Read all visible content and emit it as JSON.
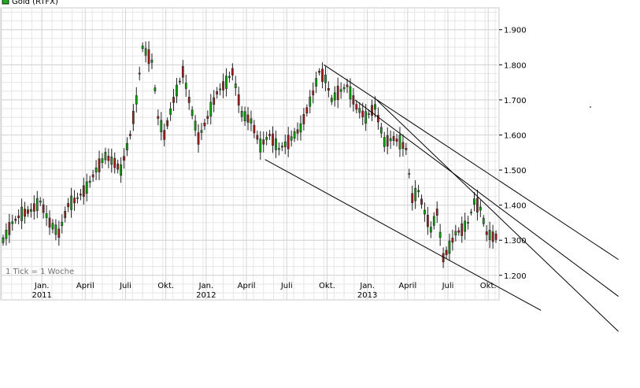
{
  "chart_data": {
    "type": "candlestick",
    "legend": {
      "label": "Gold (RTFX)",
      "color": "#22aa22"
    },
    "note": "1 Tick = 1 Woche",
    "y_range": [
      1130,
      1960
    ],
    "y_ticks": [
      "1.900",
      "1.800",
      "1.700",
      "1.600",
      "1.500",
      "1.400",
      "1.300",
      "1.200"
    ],
    "y_tick_values": [
      1900,
      1800,
      1700,
      1600,
      1500,
      1400,
      1300,
      1200
    ],
    "x_range": [
      0,
      160
    ],
    "x_ticks": [
      {
        "label": "Jan.",
        "year": "2011",
        "week": 13
      },
      {
        "label": "April",
        "year": "",
        "week": 27
      },
      {
        "label": "Juli",
        "year": "",
        "week": 40
      },
      {
        "label": "Okt.",
        "year": "",
        "week": 53
      },
      {
        "label": "Jan.",
        "year": "2012",
        "week": 66
      },
      {
        "label": "April",
        "year": "",
        "week": 79
      },
      {
        "label": "Juli",
        "year": "",
        "week": 92
      },
      {
        "label": "Okt.",
        "year": "",
        "week": 105
      },
      {
        "label": "Jan.",
        "year": "2013",
        "week": 118
      },
      {
        "label": "April",
        "year": "",
        "week": 131
      },
      {
        "label": "Juli",
        "year": "",
        "week": 144
      },
      {
        "label": "Okt.",
        "year": "",
        "week": 157
      }
    ],
    "colors": {
      "up": "#00aa00",
      "down": "#aa1a1a",
      "grid": "#d4d4d4",
      "trend": "#000000"
    },
    "anchors": [
      [
        0,
        1300
      ],
      [
        3,
        1350
      ],
      [
        6,
        1375
      ],
      [
        9,
        1385
      ],
      [
        12,
        1410
      ],
      [
        15,
        1350
      ],
      [
        18,
        1320
      ],
      [
        21,
        1400
      ],
      [
        24,
        1420
      ],
      [
        27,
        1450
      ],
      [
        30,
        1500
      ],
      [
        33,
        1540
      ],
      [
        36,
        1520
      ],
      [
        38,
        1500
      ],
      [
        41,
        1600
      ],
      [
        43,
        1700
      ],
      [
        45,
        1850
      ],
      [
        48,
        1810
      ],
      [
        50,
        1650
      ],
      [
        52,
        1600
      ],
      [
        55,
        1700
      ],
      [
        58,
        1780
      ],
      [
        60,
        1700
      ],
      [
        63,
        1590
      ],
      [
        66,
        1650
      ],
      [
        69,
        1720
      ],
      [
        72,
        1750
      ],
      [
        74,
        1780
      ],
      [
        77,
        1660
      ],
      [
        80,
        1640
      ],
      [
        83,
        1570
      ],
      [
        86,
        1600
      ],
      [
        89,
        1560
      ],
      [
        92,
        1580
      ],
      [
        96,
        1620
      ],
      [
        100,
        1720
      ],
      [
        102,
        1780
      ],
      [
        104,
        1760
      ],
      [
        106,
        1700
      ],
      [
        108,
        1720
      ],
      [
        111,
        1740
      ],
      [
        114,
        1680
      ],
      [
        117,
        1650
      ],
      [
        120,
        1680
      ],
      [
        123,
        1580
      ],
      [
        126,
        1590
      ],
      [
        128,
        1580
      ],
      [
        130,
        1560
      ],
      [
        132,
        1420
      ],
      [
        134,
        1440
      ],
      [
        136,
        1380
      ],
      [
        138,
        1330
      ],
      [
        140,
        1380
      ],
      [
        142,
        1250
      ],
      [
        144,
        1280
      ],
      [
        146,
        1320
      ],
      [
        148,
        1330
      ],
      [
        150,
        1350
      ],
      [
        152,
        1410
      ],
      [
        154,
        1390
      ],
      [
        156,
        1320
      ],
      [
        158,
        1310
      ],
      [
        159,
        1310
      ]
    ],
    "trendlines": [
      {
        "from": [
          104,
          1800
        ],
        "to": [
          199,
          1245
        ]
      },
      {
        "from": [
          114,
          1700
        ],
        "to": [
          199,
          1140
        ]
      },
      {
        "from": [
          121,
          1700
        ],
        "to": [
          199,
          1040
        ]
      },
      {
        "from": [
          85,
          1530
        ],
        "to": [
          174,
          1100
        ]
      }
    ]
  }
}
